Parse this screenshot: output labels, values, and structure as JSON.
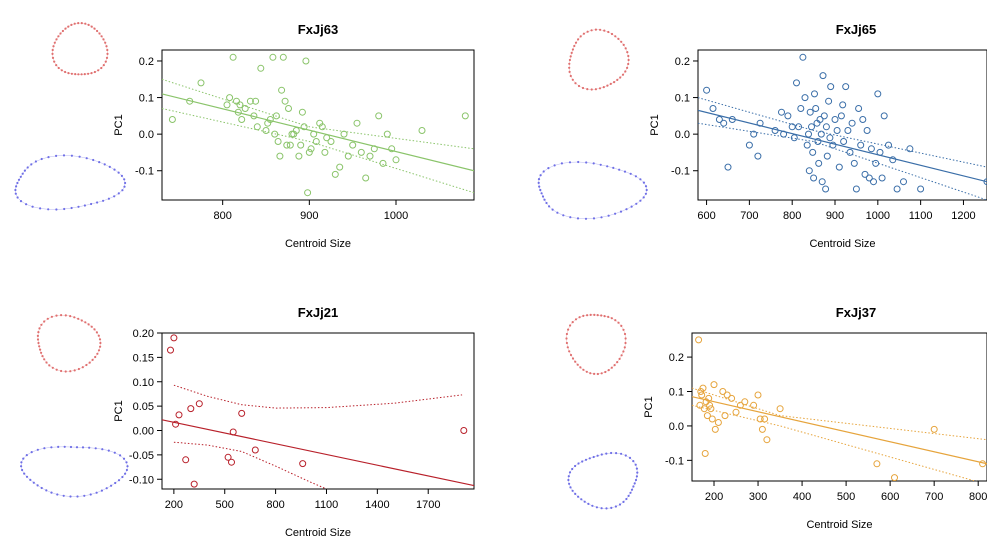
{
  "figure": {
    "panels": [
      {
        "id": "p1",
        "title": "FxJj63",
        "xlabel": "Centroid Size",
        "ylabel": "PC1"
      },
      {
        "id": "p2",
        "title": "FxJj65",
        "xlabel": "Centroid Size",
        "ylabel": "PC1"
      },
      {
        "id": "p3",
        "title": "FxJj21",
        "xlabel": "Centroid Size",
        "ylabel": "PC1"
      },
      {
        "id": "p4",
        "title": "FxJj37",
        "xlabel": "Centroid Size",
        "ylabel": "PC1"
      }
    ]
  },
  "chart_data": [
    {
      "type": "scatter",
      "title": "FxJj63",
      "xlabel": "Centroid Size",
      "ylabel": "PC1",
      "xlim": [
        730,
        1090
      ],
      "ylim": [
        -0.18,
        0.23
      ],
      "xticks": [
        800,
        900,
        1000
      ],
      "yticks": [
        -0.1,
        0.0,
        0.1,
        0.2
      ],
      "color": "#8ac46a",
      "regression": {
        "x": [
          730,
          1090
        ],
        "y": [
          0.11,
          -0.1
        ]
      },
      "ci_upper": [
        [
          730,
          0.15
        ],
        [
          900,
          0.02
        ],
        [
          1090,
          -0.04
        ]
      ],
      "ci_lower": [
        [
          730,
          0.07
        ],
        [
          900,
          -0.02
        ],
        [
          1090,
          -0.16
        ]
      ],
      "points": [
        [
          742,
          0.04
        ],
        [
          762,
          0.09
        ],
        [
          775,
          0.14
        ],
        [
          805,
          0.08
        ],
        [
          808,
          0.1
        ],
        [
          812,
          0.21
        ],
        [
          816,
          0.09
        ],
        [
          818,
          0.06
        ],
        [
          820,
          0.08
        ],
        [
          822,
          0.04
        ],
        [
          826,
          0.07
        ],
        [
          832,
          0.09
        ],
        [
          836,
          0.05
        ],
        [
          838,
          0.09
        ],
        [
          840,
          0.02
        ],
        [
          844,
          0.18
        ],
        [
          850,
          0.01
        ],
        [
          852,
          0.03
        ],
        [
          855,
          0.04
        ],
        [
          858,
          0.21
        ],
        [
          860,
          0.0
        ],
        [
          862,
          0.05
        ],
        [
          864,
          -0.02
        ],
        [
          866,
          -0.06
        ],
        [
          868,
          0.12
        ],
        [
          870,
          0.21
        ],
        [
          872,
          0.09
        ],
        [
          874,
          -0.03
        ],
        [
          876,
          0.07
        ],
        [
          878,
          -0.03
        ],
        [
          880,
          0.0
        ],
        [
          882,
          0.0
        ],
        [
          885,
          0.01
        ],
        [
          888,
          -0.06
        ],
        [
          890,
          -0.03
        ],
        [
          892,
          0.06
        ],
        [
          894,
          0.02
        ],
        [
          896,
          0.2
        ],
        [
          898,
          -0.16
        ],
        [
          900,
          -0.05
        ],
        [
          902,
          -0.04
        ],
        [
          905,
          0.0
        ],
        [
          908,
          -0.02
        ],
        [
          912,
          0.03
        ],
        [
          915,
          0.02
        ],
        [
          918,
          -0.05
        ],
        [
          920,
          -0.01
        ],
        [
          925,
          -0.02
        ],
        [
          930,
          -0.11
        ],
        [
          935,
          -0.09
        ],
        [
          940,
          0.0
        ],
        [
          945,
          -0.06
        ],
        [
          950,
          -0.03
        ],
        [
          955,
          0.03
        ],
        [
          960,
          -0.05
        ],
        [
          965,
          -0.12
        ],
        [
          970,
          -0.06
        ],
        [
          975,
          -0.04
        ],
        [
          980,
          0.05
        ],
        [
          985,
          -0.08
        ],
        [
          990,
          0.0
        ],
        [
          995,
          -0.04
        ],
        [
          1000,
          -0.07
        ],
        [
          1030,
          0.01
        ],
        [
          1080,
          0.05
        ]
      ]
    },
    {
      "type": "scatter",
      "title": "FxJj65",
      "xlabel": "Centroid Size",
      "ylabel": "PC1",
      "xlim": [
        580,
        1255
      ],
      "ylim": [
        -0.18,
        0.23
      ],
      "xticks": [
        600,
        700,
        800,
        900,
        1000,
        1100,
        1200
      ],
      "yticks": [
        -0.1,
        0.0,
        0.1,
        0.2
      ],
      "color": "#3a6ea8",
      "regression": {
        "x": [
          580,
          1255
        ],
        "y": [
          0.065,
          -0.13
        ]
      },
      "ci_upper": [
        [
          580,
          0.1
        ],
        [
          850,
          0.01
        ],
        [
          1255,
          -0.09
        ]
      ],
      "ci_lower": [
        [
          580,
          0.03
        ],
        [
          850,
          -0.02
        ],
        [
          1255,
          -0.18
        ]
      ],
      "points": [
        [
          600,
          0.12
        ],
        [
          615,
          0.07
        ],
        [
          630,
          0.04
        ],
        [
          640,
          0.03
        ],
        [
          650,
          -0.09
        ],
        [
          660,
          0.04
        ],
        [
          700,
          -0.03
        ],
        [
          710,
          0.0
        ],
        [
          720,
          -0.06
        ],
        [
          725,
          0.03
        ],
        [
          760,
          0.01
        ],
        [
          775,
          0.06
        ],
        [
          780,
          0.0
        ],
        [
          790,
          0.05
        ],
        [
          800,
          0.02
        ],
        [
          805,
          -0.01
        ],
        [
          810,
          0.14
        ],
        [
          815,
          0.02
        ],
        [
          820,
          0.07
        ],
        [
          825,
          0.21
        ],
        [
          830,
          0.1
        ],
        [
          835,
          -0.03
        ],
        [
          838,
          0.0
        ],
        [
          840,
          -0.1
        ],
        [
          842,
          0.06
        ],
        [
          845,
          0.02
        ],
        [
          848,
          -0.05
        ],
        [
          850,
          -0.12
        ],
        [
          852,
          0.11
        ],
        [
          855,
          0.07
        ],
        [
          858,
          0.03
        ],
        [
          860,
          -0.02
        ],
        [
          862,
          -0.08
        ],
        [
          865,
          0.04
        ],
        [
          868,
          0.0
        ],
        [
          870,
          -0.13
        ],
        [
          872,
          0.16
        ],
        [
          875,
          0.05
        ],
        [
          878,
          -0.15
        ],
        [
          880,
          0.02
        ],
        [
          882,
          -0.06
        ],
        [
          885,
          0.09
        ],
        [
          888,
          -0.01
        ],
        [
          890,
          0.13
        ],
        [
          895,
          -0.03
        ],
        [
          900,
          0.04
        ],
        [
          905,
          0.01
        ],
        [
          910,
          -0.09
        ],
        [
          915,
          0.05
        ],
        [
          918,
          0.08
        ],
        [
          920,
          -0.02
        ],
        [
          925,
          0.13
        ],
        [
          930,
          0.01
        ],
        [
          935,
          -0.05
        ],
        [
          940,
          0.03
        ],
        [
          945,
          -0.08
        ],
        [
          950,
          -0.15
        ],
        [
          955,
          0.07
        ],
        [
          960,
          -0.03
        ],
        [
          965,
          0.04
        ],
        [
          970,
          -0.11
        ],
        [
          975,
          0.01
        ],
        [
          980,
          -0.12
        ],
        [
          985,
          -0.04
        ],
        [
          990,
          -0.13
        ],
        [
          995,
          -0.08
        ],
        [
          1000,
          0.11
        ],
        [
          1005,
          -0.05
        ],
        [
          1010,
          -0.12
        ],
        [
          1015,
          0.05
        ],
        [
          1025,
          -0.03
        ],
        [
          1035,
          -0.07
        ],
        [
          1045,
          -0.15
        ],
        [
          1060,
          -0.13
        ],
        [
          1075,
          -0.04
        ],
        [
          1100,
          -0.15
        ],
        [
          1255,
          -0.13
        ]
      ]
    },
    {
      "type": "scatter",
      "title": "FxJj21",
      "xlabel": "Centroid Size",
      "ylabel": "PC1",
      "xlim": [
        130,
        1970
      ],
      "ylim": [
        -0.12,
        0.2
      ],
      "xticks": [
        200,
        500,
        800,
        1100,
        1400,
        1700
      ],
      "yticks": [
        -0.1,
        -0.05,
        0.0,
        0.05,
        0.1,
        0.15,
        0.2
      ],
      "ytick_labels": [
        "-0.10",
        "-0.05",
        "0.00",
        "0.05",
        "0.10",
        "0.15",
        "0.20"
      ],
      "color": "#b8202a",
      "regression": {
        "x": [
          130,
          1970
        ],
        "y": [
          0.022,
          -0.113
        ]
      },
      "ci_upper": [
        [
          200,
          0.093
        ],
        [
          400,
          0.07
        ],
        [
          600,
          0.053
        ],
        [
          800,
          0.046
        ],
        [
          1100,
          0.047
        ],
        [
          1500,
          0.056
        ],
        [
          1900,
          0.073
        ]
      ],
      "ci_lower": [
        [
          200,
          -0.024
        ],
        [
          400,
          -0.03
        ],
        [
          600,
          -0.043
        ],
        [
          800,
          -0.073
        ],
        [
          1000,
          -0.105
        ],
        [
          1100,
          -0.12
        ]
      ],
      "points": [
        [
          180,
          0.165
        ],
        [
          200,
          0.19
        ],
        [
          210,
          0.013
        ],
        [
          230,
          0.032
        ],
        [
          270,
          -0.06
        ],
        [
          300,
          0.045
        ],
        [
          320,
          -0.11
        ],
        [
          350,
          0.055
        ],
        [
          520,
          -0.055
        ],
        [
          540,
          -0.065
        ],
        [
          550,
          -0.003
        ],
        [
          600,
          0.035
        ],
        [
          680,
          -0.04
        ],
        [
          960,
          -0.068
        ],
        [
          1910,
          0.0
        ]
      ]
    },
    {
      "type": "scatter",
      "title": "FxJj37",
      "xlabel": "Centroid Size",
      "ylabel": "PC1",
      "xlim": [
        150,
        820
      ],
      "ylim": [
        -0.16,
        0.27
      ],
      "xticks": [
        200,
        300,
        400,
        500,
        600,
        700,
        800
      ],
      "yticks": [
        -0.1,
        0.0,
        0.1,
        0.2
      ],
      "color": "#e6a43c",
      "regression": {
        "x": [
          150,
          820
        ],
        "y": [
          0.085,
          -0.11
        ]
      },
      "ci_upper": [
        [
          150,
          0.11
        ],
        [
          350,
          0.03
        ],
        [
          820,
          -0.04
        ]
      ],
      "ci_lower": [
        [
          150,
          0.06
        ],
        [
          350,
          0.0
        ],
        [
          820,
          -0.17
        ]
      ],
      "points": [
        [
          165,
          0.25
        ],
        [
          168,
          0.06
        ],
        [
          170,
          0.1
        ],
        [
          172,
          0.09
        ],
        [
          175,
          0.11
        ],
        [
          178,
          0.05
        ],
        [
          180,
          -0.08
        ],
        [
          182,
          0.07
        ],
        [
          185,
          0.03
        ],
        [
          188,
          0.08
        ],
        [
          190,
          0.06
        ],
        [
          193,
          0.05
        ],
        [
          196,
          0.02
        ],
        [
          200,
          0.12
        ],
        [
          203,
          -0.01
        ],
        [
          210,
          0.01
        ],
        [
          220,
          0.1
        ],
        [
          225,
          0.03
        ],
        [
          230,
          0.09
        ],
        [
          240,
          0.08
        ],
        [
          250,
          0.04
        ],
        [
          260,
          0.06
        ],
        [
          270,
          0.07
        ],
        [
          290,
          0.06
        ],
        [
          300,
          0.09
        ],
        [
          305,
          0.02
        ],
        [
          310,
          -0.01
        ],
        [
          315,
          0.02
        ],
        [
          320,
          -0.04
        ],
        [
          350,
          0.05
        ],
        [
          570,
          -0.11
        ],
        [
          610,
          -0.15
        ],
        [
          700,
          -0.01
        ],
        [
          810,
          -0.11
        ]
      ]
    }
  ]
}
